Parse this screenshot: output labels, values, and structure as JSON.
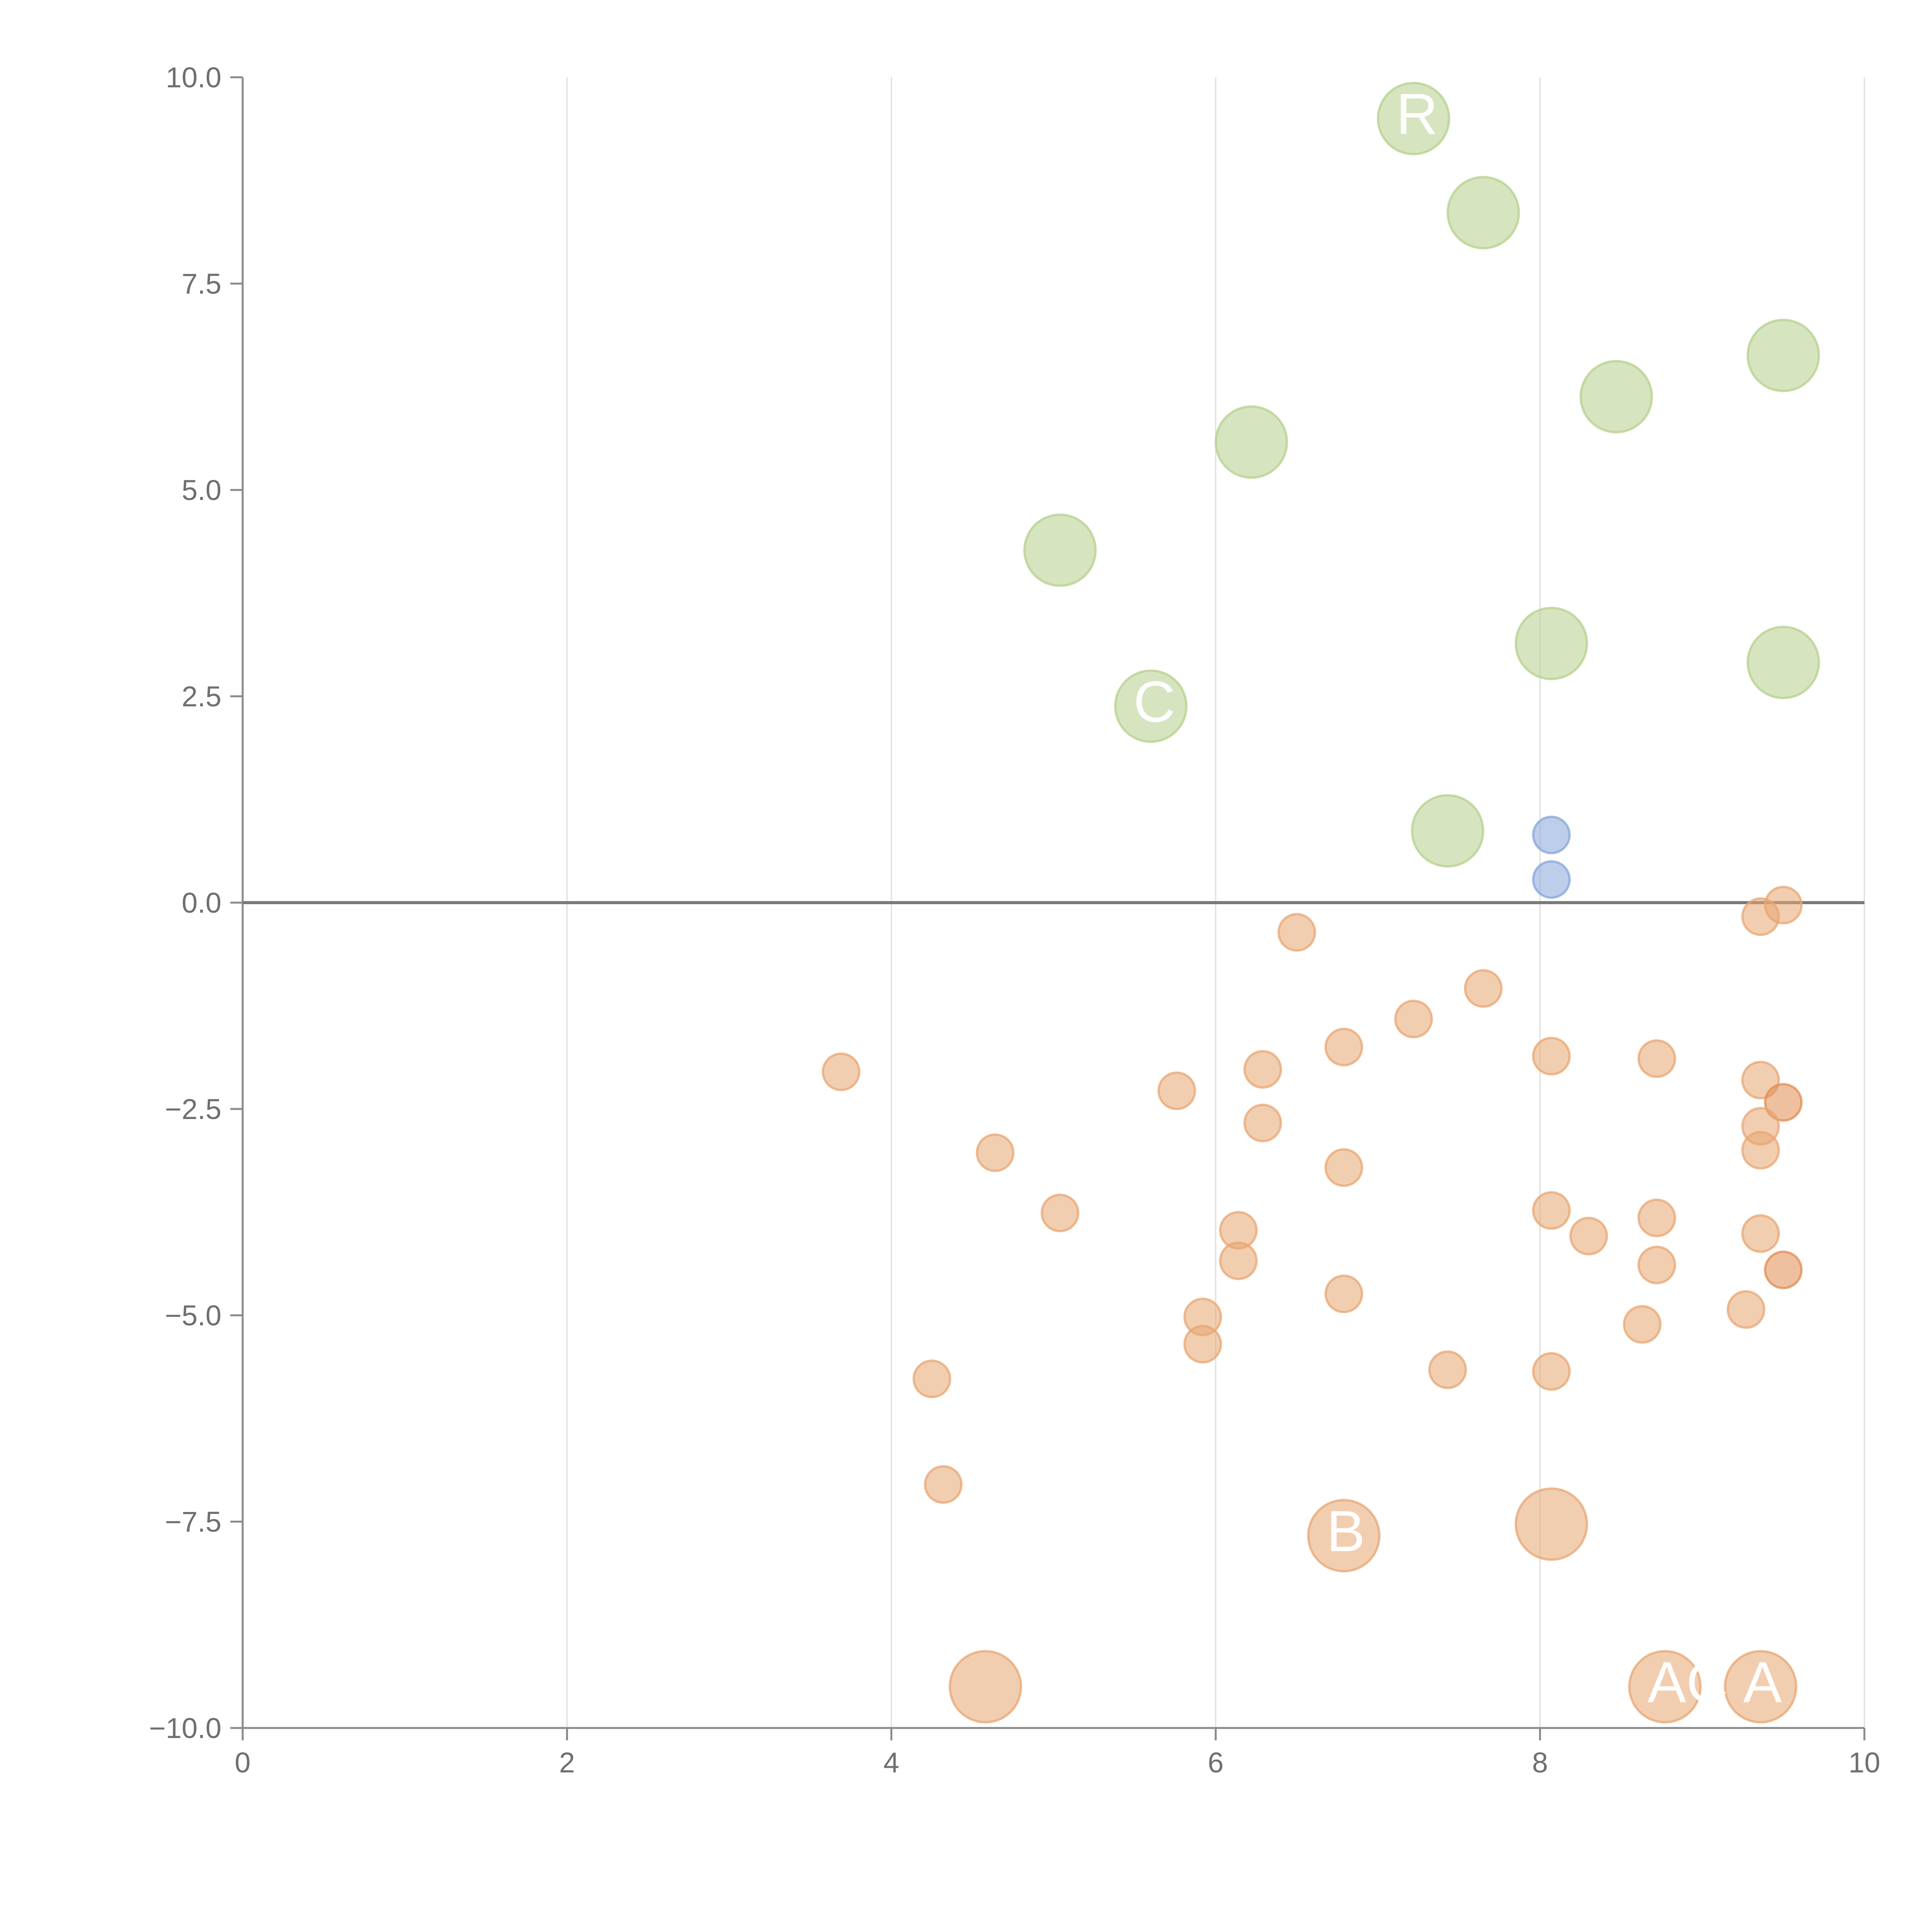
{
  "chart_data": {
    "type": "scatter",
    "title": "",
    "xlabel": "",
    "ylabel": "",
    "xlim": [
      0,
      10
    ],
    "ylim": [
      -10,
      10
    ],
    "x_ticks": [
      "0",
      "2",
      "4",
      "6",
      "8",
      "10"
    ],
    "y_ticks": [
      "10.0",
      "7.5",
      "5.0",
      "2.5",
      "0.0",
      "−2.5",
      "−5.0",
      "−7.5",
      "−10.0"
    ],
    "grid": "vertical",
    "reference_line_y": 0,
    "colors": {
      "green": "#b5d08c",
      "blue": "#86a5d8",
      "orange": "#e8a671",
      "orange_dark": "#e08c52",
      "axis": "#8a8a8a",
      "grid": "#dddddd",
      "zero_line": "#7a7a7a",
      "label": "#ffffff"
    },
    "series": [
      {
        "name": "green",
        "color": "#b5d08c",
        "points": [
          {
            "x": 7.22,
            "y": 9.5,
            "size": "large",
            "label": "R"
          },
          {
            "x": 7.65,
            "y": 8.36,
            "size": "large",
            "label": ""
          },
          {
            "x": 9.5,
            "y": 6.63,
            "size": "large",
            "label": ""
          },
          {
            "x": 8.47,
            "y": 6.13,
            "size": "large",
            "label": ""
          },
          {
            "x": 6.22,
            "y": 5.58,
            "size": "large",
            "label": ""
          },
          {
            "x": 5.04,
            "y": 4.27,
            "size": "large",
            "label": ""
          },
          {
            "x": 8.07,
            "y": 3.14,
            "size": "large",
            "label": ""
          },
          {
            "x": 9.5,
            "y": 2.91,
            "size": "large",
            "label": ""
          },
          {
            "x": 5.6,
            "y": 2.38,
            "size": "large",
            "label": "C"
          },
          {
            "x": 7.43,
            "y": 0.87,
            "size": "large",
            "label": ""
          }
        ]
      },
      {
        "name": "blue",
        "color": "#86a5d8",
        "points": [
          {
            "x": 8.07,
            "y": 0.82,
            "size": "small",
            "label": ""
          },
          {
            "x": 8.07,
            "y": 0.28,
            "size": "small",
            "label": ""
          }
        ]
      },
      {
        "name": "orange",
        "color": "#e8a671",
        "points": [
          {
            "x": 9.5,
            "y": -0.03,
            "size": "small",
            "label": ""
          },
          {
            "x": 9.36,
            "y": -0.17,
            "size": "small",
            "label": ""
          },
          {
            "x": 6.5,
            "y": -0.36,
            "size": "small",
            "label": ""
          },
          {
            "x": 7.65,
            "y": -1.04,
            "size": "small",
            "label": ""
          },
          {
            "x": 7.22,
            "y": -1.41,
            "size": "small",
            "label": ""
          },
          {
            "x": 6.79,
            "y": -1.75,
            "size": "small",
            "label": ""
          },
          {
            "x": 8.07,
            "y": -1.86,
            "size": "small",
            "label": ""
          },
          {
            "x": 8.72,
            "y": -1.89,
            "size": "small",
            "label": ""
          },
          {
            "x": 6.29,
            "y": -2.02,
            "size": "small",
            "label": ""
          },
          {
            "x": 3.69,
            "y": -2.05,
            "size": "small",
            "label": ""
          },
          {
            "x": 9.36,
            "y": -2.15,
            "size": "small",
            "label": ""
          },
          {
            "x": 5.76,
            "y": -2.28,
            "size": "small",
            "label": ""
          },
          {
            "x": 9.5,
            "y": -2.42,
            "size": "small",
            "label": "",
            "dark": true
          },
          {
            "x": 9.36,
            "y": -2.71,
            "size": "small",
            "label": ""
          },
          {
            "x": 6.29,
            "y": -2.67,
            "size": "small",
            "label": ""
          },
          {
            "x": 9.36,
            "y": -3.0,
            "size": "small",
            "label": ""
          },
          {
            "x": 4.64,
            "y": -3.03,
            "size": "small",
            "label": ""
          },
          {
            "x": 6.79,
            "y": -3.21,
            "size": "small",
            "label": ""
          },
          {
            "x": 8.07,
            "y": -3.73,
            "size": "small",
            "label": ""
          },
          {
            "x": 5.04,
            "y": -3.76,
            "size": "small",
            "label": ""
          },
          {
            "x": 8.72,
            "y": -3.82,
            "size": "small",
            "label": ""
          },
          {
            "x": 6.14,
            "y": -3.97,
            "size": "small",
            "label": ""
          },
          {
            "x": 9.36,
            "y": -4.01,
            "size": "small",
            "label": ""
          },
          {
            "x": 8.3,
            "y": -4.04,
            "size": "small",
            "label": ""
          },
          {
            "x": 6.14,
            "y": -4.34,
            "size": "small",
            "label": ""
          },
          {
            "x": 8.72,
            "y": -4.39,
            "size": "small",
            "label": ""
          },
          {
            "x": 9.5,
            "y": -4.45,
            "size": "small",
            "label": "",
            "dark": true
          },
          {
            "x": 6.79,
            "y": -4.74,
            "size": "small",
            "label": ""
          },
          {
            "x": 9.27,
            "y": -4.93,
            "size": "small",
            "label": ""
          },
          {
            "x": 5.92,
            "y": -5.02,
            "size": "small",
            "label": ""
          },
          {
            "x": 8.63,
            "y": -5.11,
            "size": "small",
            "label": ""
          },
          {
            "x": 5.92,
            "y": -5.35,
            "size": "small",
            "label": ""
          },
          {
            "x": 7.43,
            "y": -5.66,
            "size": "small",
            "label": ""
          },
          {
            "x": 8.07,
            "y": -5.68,
            "size": "small",
            "label": ""
          },
          {
            "x": 4.25,
            "y": -5.77,
            "size": "small",
            "label": ""
          },
          {
            "x": 4.32,
            "y": -7.05,
            "size": "small",
            "label": ""
          },
          {
            "x": 8.07,
            "y": -7.53,
            "size": "large",
            "label": ""
          },
          {
            "x": 6.79,
            "y": -7.67,
            "size": "large",
            "label": "B"
          },
          {
            "x": 4.58,
            "y": -9.5,
            "size": "large",
            "label": ""
          },
          {
            "x": 8.77,
            "y": -9.5,
            "size": "large",
            "label": "AC"
          },
          {
            "x": 9.36,
            "y": -9.5,
            "size": "large",
            "label": "A"
          }
        ]
      }
    ]
  }
}
